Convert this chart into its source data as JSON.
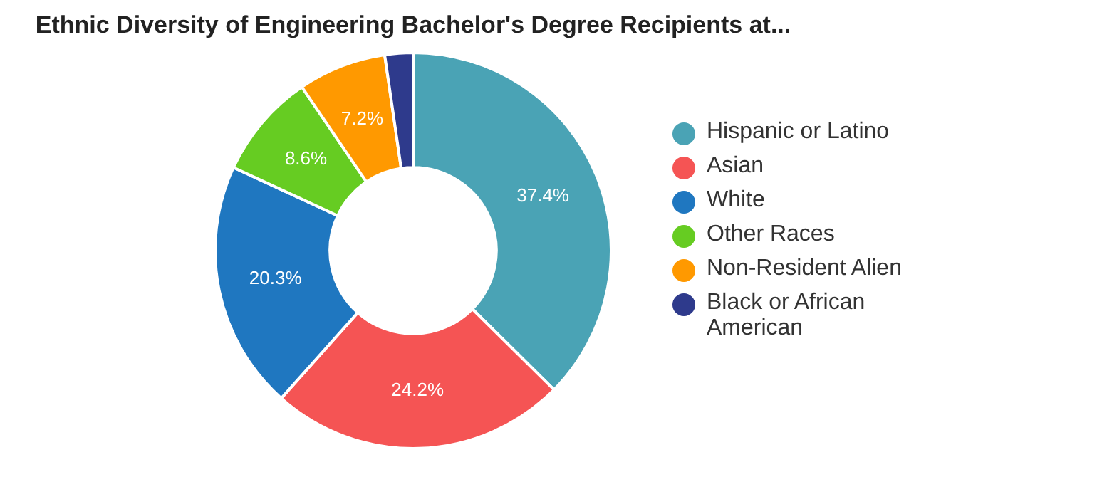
{
  "chart_data": {
    "type": "donut",
    "title": "Ethnic Diversity of Engineering Bachelor's Degree Recipients at...",
    "categories": [
      "Hispanic or Latino",
      "Asian",
      "White",
      "Other Races",
      "Non-Resident Alien",
      "Black or African American"
    ],
    "values": [
      37.4,
      24.2,
      20.3,
      8.6,
      7.2,
      2.3
    ],
    "colors": [
      "#4aa3b5",
      "#f55454",
      "#1f77c0",
      "#66cc22",
      "#ff9900",
      "#2e3a8c"
    ],
    "value_labels": [
      "37.4%",
      "24.2%",
      "20.3%",
      "8.6%",
      "7.2%",
      null
    ],
    "legend": "right"
  }
}
